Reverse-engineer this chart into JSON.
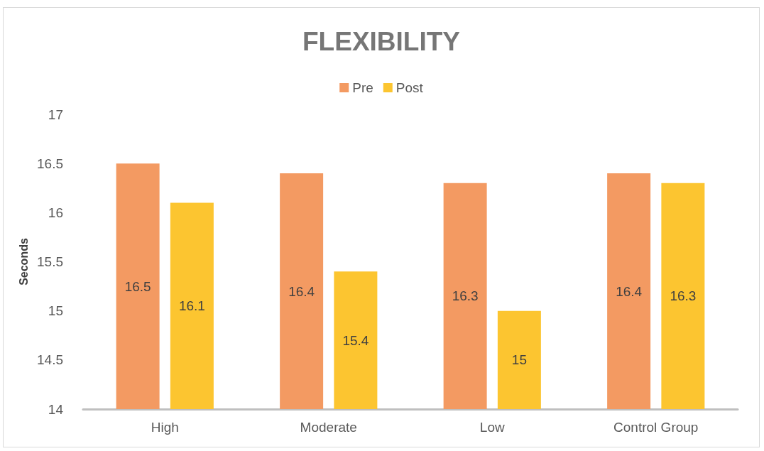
{
  "chart_data": {
    "type": "bar",
    "title": "FLEXIBILITY",
    "ylabel": "Seconds",
    "categories": [
      "High",
      "Moderate",
      "Low",
      "Control Group"
    ],
    "series": [
      {
        "name": "Pre",
        "color": "#f39a62",
        "values": [
          16.5,
          16.4,
          16.3,
          16.4
        ]
      },
      {
        "name": "Post",
        "color": "#fcc530",
        "values": [
          16.1,
          15.4,
          15,
          16.3
        ]
      }
    ],
    "ylim": [
      14,
      17
    ],
    "yticks": [
      14,
      14.5,
      15,
      15.5,
      16,
      16.5,
      17
    ],
    "grid": false,
    "legend": "top",
    "data_labels": true
  }
}
